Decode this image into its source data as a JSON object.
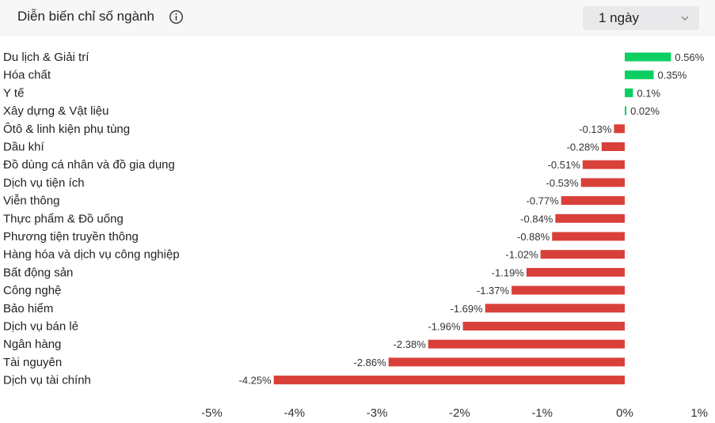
{
  "header": {
    "title": "Diễn biến chỉ số ngành",
    "info_icon": "info-circle-icon",
    "period_select": {
      "value": "1 ngày",
      "icon": "chevron-down-icon"
    }
  },
  "colors": {
    "positive": "#0ccf62",
    "negative": "#d9403a",
    "header_bg": "#f7f7f8",
    "dropdown_bg": "#e9e9ec"
  },
  "chart_data": {
    "type": "bar",
    "orientation": "horizontal",
    "title": "Diễn biến chỉ số ngành",
    "xlabel": "",
    "ylabel": "",
    "xlim": [
      -5,
      1
    ],
    "x_ticks": [
      "-5%",
      "-4%",
      "-3%",
      "-2%",
      "-1%",
      "0%",
      "1%"
    ],
    "grid": false,
    "categories": [
      "Du lịch & Giải trí",
      "Hóa chất",
      "Y tế",
      "Xây dựng & Vật liệu",
      "Ôtô & linh kiện phụ tùng",
      "Dầu khí",
      "Đồ dùng cá nhân và đồ gia dụng",
      "Dịch vụ tiện ích",
      "Viễn thông",
      "Thực phẩm & Đồ uống",
      "Phương tiện truyền thông",
      "Hàng hóa và dịch vụ công nghiệp",
      "Bất động sản",
      "Công nghệ",
      "Bảo hiểm",
      "Dịch vụ bán lẻ",
      "Ngân hàng",
      "Tài nguyên",
      "Dịch vụ tài chính"
    ],
    "values": [
      0.56,
      0.35,
      0.1,
      0.02,
      -0.13,
      -0.28,
      -0.51,
      -0.53,
      -0.77,
      -0.84,
      -0.88,
      -1.02,
      -1.19,
      -1.37,
      -1.69,
      -1.96,
      -2.38,
      -2.86,
      -4.25
    ],
    "data_labels": [
      "0.56%",
      "0.35%",
      "0.1%",
      "0.02%",
      "-0.13%",
      "-0.28%",
      "-0.51%",
      "-0.53%",
      "-0.77%",
      "-0.84%",
      "-0.88%",
      "-1.02%",
      "-1.19%",
      "-1.37%",
      "-1.69%",
      "-1.96%",
      "-2.38%",
      "-2.86%",
      "-4.25%"
    ]
  }
}
